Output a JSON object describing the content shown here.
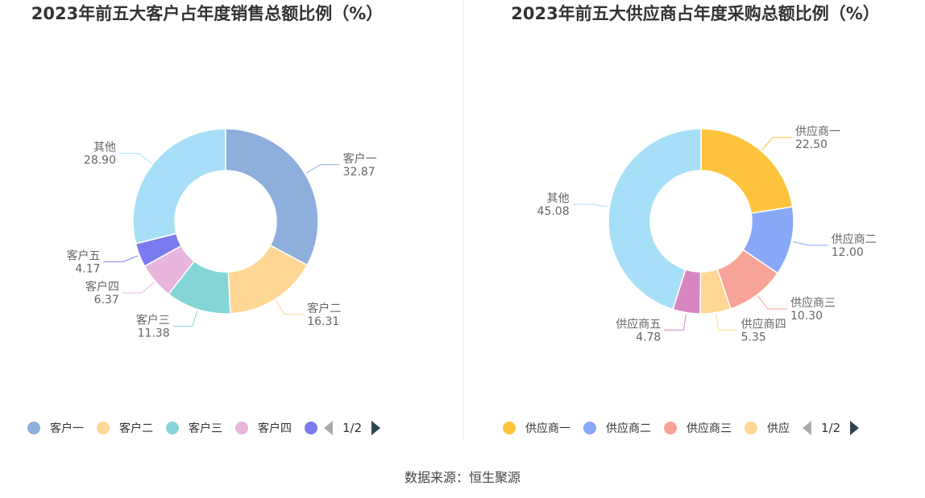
{
  "chart_data": [
    {
      "type": "pie",
      "title": "2023年前五大客户占年度销售总额比例（%）",
      "categories": [
        "客户一",
        "客户二",
        "客户三",
        "客户四",
        "客户五",
        "其他"
      ],
      "values": [
        32.87,
        16.31,
        11.38,
        6.37,
        4.17,
        28.9
      ],
      "value_labels": [
        "32.87",
        "16.31",
        "11.38",
        "6.37",
        "4.17",
        "28.90"
      ],
      "colors": [
        "#8eaedb",
        "#ffd794",
        "#84d6d6",
        "#e8b5dc",
        "#7b7bf0",
        "#a6dff7"
      ],
      "legend": {
        "position": "bottom",
        "visible_items": [
          "客户一",
          "客户二",
          "客户三",
          "客户四",
          ""
        ],
        "page": "1/2"
      }
    },
    {
      "type": "pie",
      "title": "2023年前五大供应商占年度采购总额比例（%）",
      "categories": [
        "供应商一",
        "供应商二",
        "供应商三",
        "供应商四",
        "供应商五",
        "其他"
      ],
      "values": [
        22.5,
        12.0,
        10.3,
        5.35,
        4.78,
        45.08
      ],
      "value_labels": [
        "22.50",
        "12.00",
        "10.30",
        "5.35",
        "4.78",
        "45.08"
      ],
      "colors": [
        "#ffc43d",
        "#88a8f7",
        "#f7a398",
        "#ffd794",
        "#d886c0",
        "#a6dff7"
      ],
      "legend": {
        "position": "bottom",
        "visible_items": [
          "供应商一",
          "供应商二",
          "供应商三",
          "供应"
        ],
        "page": "1/2"
      }
    }
  ],
  "footer": "数据来源：恒生聚源"
}
